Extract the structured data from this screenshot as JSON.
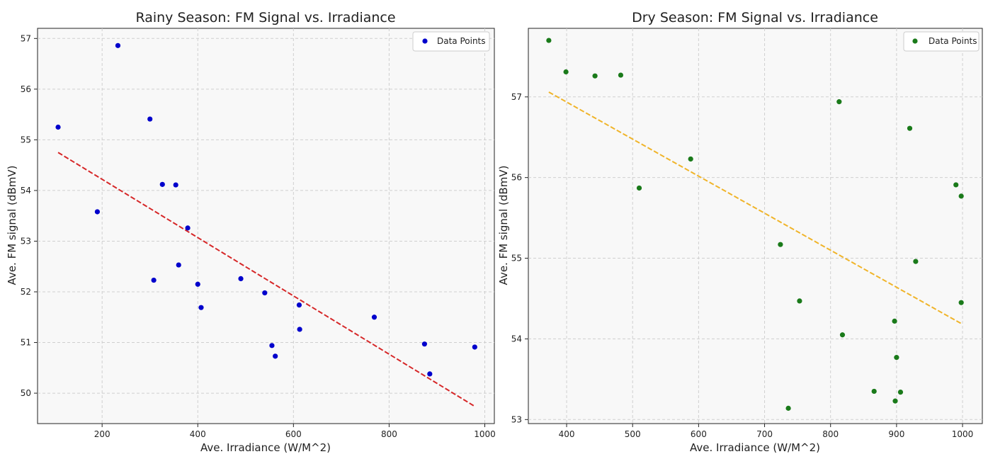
{
  "chart_data": [
    {
      "type": "scatter",
      "title": "Rainy Season: FM Signal vs. Irradiance",
      "xlabel": "Ave. Irradiance (W/M^2)",
      "ylabel": "Ave. FM signal (dBmV)",
      "xlim": [
        65,
        1020
      ],
      "ylim": [
        49.4,
        57.2
      ],
      "xticks": [
        200,
        400,
        600,
        800,
        1000
      ],
      "yticks": [
        50,
        51,
        52,
        53,
        54,
        55,
        56,
        57
      ],
      "grid": true,
      "legend": "top-right",
      "series": [
        {
          "name": "Data Points",
          "color": "#0000cc",
          "x": [
            108,
            190,
            233,
            300,
            308,
            326,
            354,
            360,
            379,
            400,
            407,
            490,
            540,
            555,
            562,
            612,
            613,
            769,
            874,
            885,
            979
          ],
          "y": [
            55.25,
            53.58,
            56.86,
            55.41,
            52.23,
            54.12,
            54.11,
            52.53,
            53.26,
            52.15,
            51.69,
            52.26,
            51.98,
            50.94,
            50.73,
            51.74,
            51.26,
            51.5,
            50.97,
            50.38,
            50.91
          ]
        }
      ],
      "trend_line": {
        "color": "#d62728",
        "x": [
          108,
          979
        ],
        "y": [
          54.75,
          49.74
        ]
      }
    },
    {
      "type": "scatter",
      "title": "Dry Season: FM Signal vs. Irradiance",
      "xlabel": "Ave. Irradiance (W/M^2)",
      "ylabel": "Ave. FM signal (dBmV)",
      "xlim": [
        342,
        1030
      ],
      "ylim": [
        52.95,
        57.85
      ],
      "xticks": [
        400,
        500,
        600,
        700,
        800,
        900,
        1000
      ],
      "yticks": [
        53,
        54,
        55,
        56,
        57
      ],
      "grid": true,
      "legend": "top-right",
      "series": [
        {
          "name": "Data Points",
          "color": "#1a7a1a",
          "x": [
            373,
            399,
            443,
            482,
            510,
            588,
            724,
            736,
            753,
            813,
            818,
            866,
            897,
            898,
            900,
            906,
            920,
            929,
            990,
            998,
            998
          ],
          "y": [
            57.7,
            57.31,
            57.26,
            57.27,
            55.87,
            56.23,
            55.17,
            53.14,
            54.47,
            56.94,
            54.05,
            53.35,
            54.22,
            53.23,
            53.77,
            53.34,
            56.61,
            54.96,
            55.91,
            55.77,
            54.45
          ]
        }
      ],
      "trend_line": {
        "color": "#f0b429",
        "x": [
          373,
          998
        ],
        "y": [
          57.06,
          54.19
        ]
      }
    }
  ]
}
